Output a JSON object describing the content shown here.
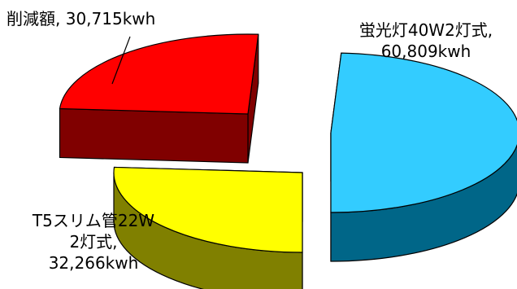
{
  "chart_data": {
    "type": "pie",
    "style": "3d-exploded",
    "slices": [
      {
        "name": "削減額",
        "value": 30715,
        "unit": "kwh",
        "label_lines": [
          "削減額, 30,715kwh"
        ],
        "color": "#ff0000",
        "side_color": "#800000"
      },
      {
        "name": "蛍光灯40W2灯式",
        "value": 60809,
        "unit": "kwh",
        "label_lines": [
          "蛍光灯40W2灯式,",
          "60,809kwh"
        ],
        "color": "#33ccff",
        "side_color": "#006688"
      },
      {
        "name": "T5スリム管22W 2灯式",
        "value": 32266,
        "unit": "kwh",
        "label_lines": [
          "T5スリム管22W",
          "2灯式,",
          "32,266kwh"
        ],
        "color": "#ffff00",
        "side_color": "#808000"
      }
    ]
  }
}
